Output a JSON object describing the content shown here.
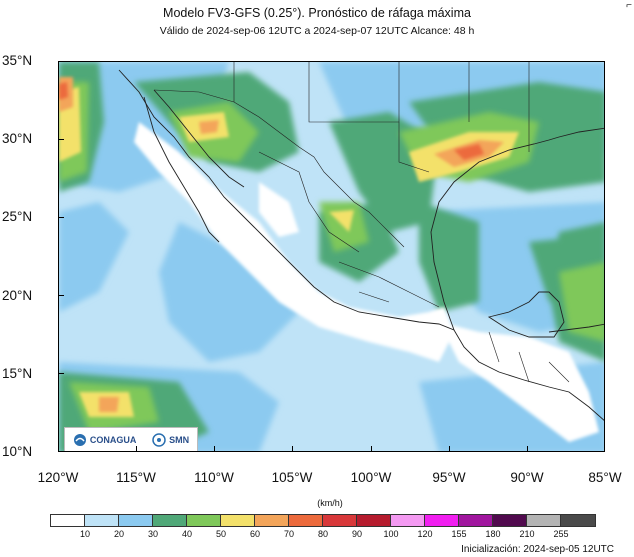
{
  "header": {
    "title": "Modelo FV3-GFS (0.25°). Pronóstico de ráfaga máxima",
    "subtitle": "Válido de 2024-sep-06 12UTC a 2024-sep-07 12UTC    Alcance: 48 h"
  },
  "axes": {
    "lat_labels": [
      "35°N",
      "30°N",
      "25°N",
      "20°N",
      "15°N",
      "10°N"
    ],
    "lon_labels": [
      "120°W",
      "115°W",
      "110°W",
      "105°W",
      "100°W",
      "95°W",
      "90°W",
      "85°W"
    ]
  },
  "colorbar": {
    "units": "(km/h)",
    "ticks": [
      "10",
      "20",
      "30",
      "40",
      "50",
      "60",
      "70",
      "80",
      "90",
      "100",
      "120",
      "155",
      "180",
      "210",
      "255"
    ],
    "colors": [
      "#ffffff",
      "#bfe3f7",
      "#8ccaf0",
      "#50a878",
      "#7fc85a",
      "#f3e16b",
      "#f3a55a",
      "#ec6a3c",
      "#d8383a",
      "#b61c2e",
      "#f49af2",
      "#f11ff0",
      "#a0169e",
      "#510a4e",
      "#b4b4b4",
      "#4a4a4a"
    ]
  },
  "logos": {
    "conagua": "CONAGUA",
    "smn": "SMN"
  },
  "footer": {
    "init": "Inicialización: 2024-sep-05 12UTC"
  }
}
